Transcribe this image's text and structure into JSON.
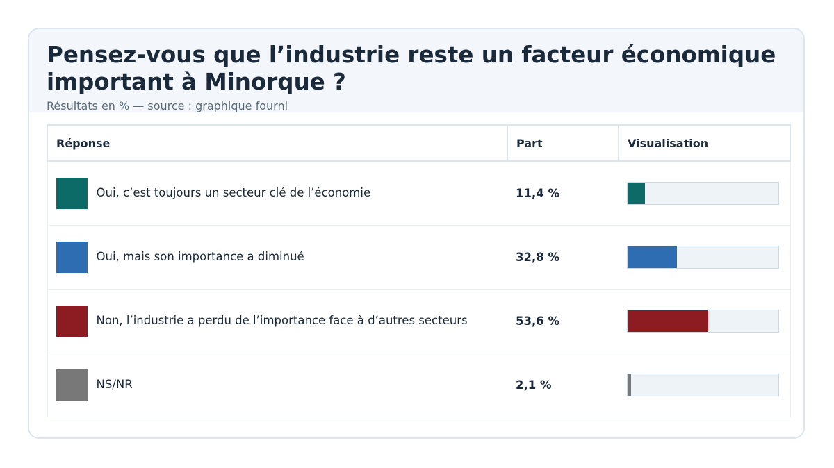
{
  "header": {
    "title": "Pensez-vous que l’industrie reste un facteur économique important à Minorque ?",
    "subtitle": "Résultats en % — source : graphique fourni"
  },
  "table": {
    "columns": [
      "Réponse",
      "Part",
      "Visualisation"
    ]
  },
  "chart_data": {
    "type": "table",
    "title": "Pensez-vous que l’industrie reste un facteur économique important à Minorque ?",
    "unit": "%",
    "ylim": [
      0,
      100
    ],
    "rows": [
      {
        "label": "Oui, c’est toujours un secteur clé de l’économie",
        "value": 11.4,
        "display": "11,4 %",
        "color": "#0c6b66"
      },
      {
        "label": "Oui, mais son importance a diminué",
        "value": 32.8,
        "display": "32,8 %",
        "color": "#2f6db2"
      },
      {
        "label": "Non, l’industrie a perdu de l’importance face à d’autres secteurs",
        "value": 53.6,
        "display": "53,6 %",
        "color": "#8c1c21"
      },
      {
        "label": "NS/NR",
        "value": 2.1,
        "display": "2,1 %",
        "color": "#787878"
      }
    ]
  }
}
